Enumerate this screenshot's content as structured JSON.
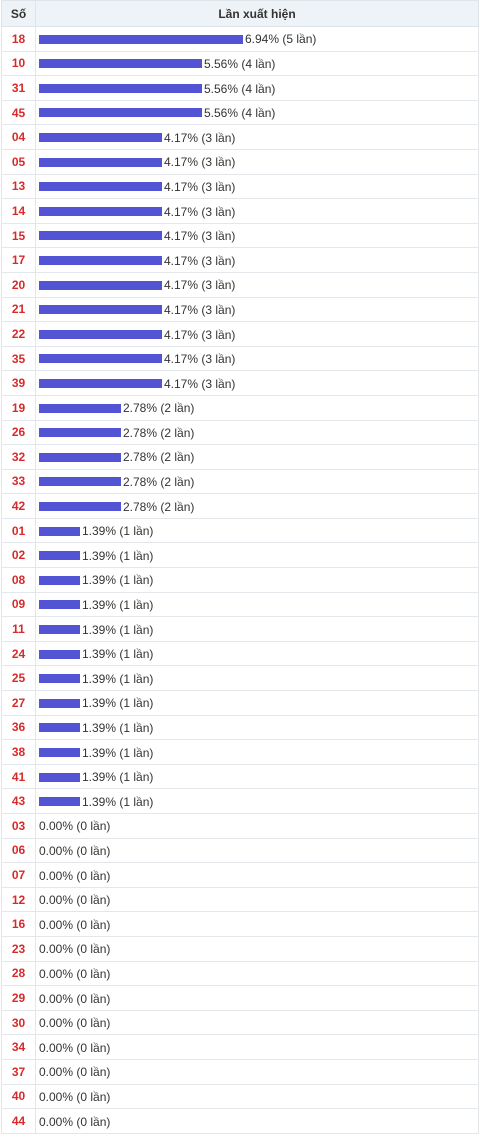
{
  "header": {
    "col_number": "Số",
    "col_freq": "Lần xuất hiện"
  },
  "colors": {
    "bar": "#5254d4",
    "number": "#d82a2a",
    "header_bg": "#eef3f8"
  },
  "chart_data": {
    "type": "bar",
    "orientation": "horizontal",
    "value_unit": "percent",
    "rows": [
      {
        "num": "18",
        "value": 6.94,
        "label": "6.94% (5 lần)"
      },
      {
        "num": "10",
        "value": 5.56,
        "label": "5.56% (4 lần)"
      },
      {
        "num": "31",
        "value": 5.56,
        "label": "5.56% (4 lần)"
      },
      {
        "num": "45",
        "value": 5.56,
        "label": "5.56% (4 lần)"
      },
      {
        "num": "04",
        "value": 4.17,
        "label": "4.17% (3 lần)"
      },
      {
        "num": "05",
        "value": 4.17,
        "label": "4.17% (3 lần)"
      },
      {
        "num": "13",
        "value": 4.17,
        "label": "4.17% (3 lần)"
      },
      {
        "num": "14",
        "value": 4.17,
        "label": "4.17% (3 lần)"
      },
      {
        "num": "15",
        "value": 4.17,
        "label": "4.17% (3 lần)"
      },
      {
        "num": "17",
        "value": 4.17,
        "label": "4.17% (3 lần)"
      },
      {
        "num": "20",
        "value": 4.17,
        "label": "4.17% (3 lần)"
      },
      {
        "num": "21",
        "value": 4.17,
        "label": "4.17% (3 lần)"
      },
      {
        "num": "22",
        "value": 4.17,
        "label": "4.17% (3 lần)"
      },
      {
        "num": "35",
        "value": 4.17,
        "label": "4.17% (3 lần)"
      },
      {
        "num": "39",
        "value": 4.17,
        "label": "4.17% (3 lần)"
      },
      {
        "num": "19",
        "value": 2.78,
        "label": "2.78% (2 lần)"
      },
      {
        "num": "26",
        "value": 2.78,
        "label": "2.78% (2 lần)"
      },
      {
        "num": "32",
        "value": 2.78,
        "label": "2.78% (2 lần)"
      },
      {
        "num": "33",
        "value": 2.78,
        "label": "2.78% (2 lần)"
      },
      {
        "num": "42",
        "value": 2.78,
        "label": "2.78% (2 lần)"
      },
      {
        "num": "01",
        "value": 1.39,
        "label": "1.39% (1 lần)"
      },
      {
        "num": "02",
        "value": 1.39,
        "label": "1.39% (1 lần)"
      },
      {
        "num": "08",
        "value": 1.39,
        "label": "1.39% (1 lần)"
      },
      {
        "num": "09",
        "value": 1.39,
        "label": "1.39% (1 lần)"
      },
      {
        "num": "11",
        "value": 1.39,
        "label": "1.39% (1 lần)"
      },
      {
        "num": "24",
        "value": 1.39,
        "label": "1.39% (1 lần)"
      },
      {
        "num": "25",
        "value": 1.39,
        "label": "1.39% (1 lần)"
      },
      {
        "num": "27",
        "value": 1.39,
        "label": "1.39% (1 lần)"
      },
      {
        "num": "36",
        "value": 1.39,
        "label": "1.39% (1 lần)"
      },
      {
        "num": "38",
        "value": 1.39,
        "label": "1.39% (1 lần)"
      },
      {
        "num": "41",
        "value": 1.39,
        "label": "1.39% (1 lần)"
      },
      {
        "num": "43",
        "value": 1.39,
        "label": "1.39% (1 lần)"
      },
      {
        "num": "03",
        "value": 0,
        "label": "0.00% (0 lần)"
      },
      {
        "num": "06",
        "value": 0,
        "label": "0.00% (0 lần)"
      },
      {
        "num": "07",
        "value": 0,
        "label": "0.00% (0 lần)"
      },
      {
        "num": "12",
        "value": 0,
        "label": "0.00% (0 lần)"
      },
      {
        "num": "16",
        "value": 0,
        "label": "0.00% (0 lần)"
      },
      {
        "num": "23",
        "value": 0,
        "label": "0.00% (0 lần)"
      },
      {
        "num": "28",
        "value": 0,
        "label": "0.00% (0 lần)"
      },
      {
        "num": "29",
        "value": 0,
        "label": "0.00% (0 lần)"
      },
      {
        "num": "30",
        "value": 0,
        "label": "0.00% (0 lần)"
      },
      {
        "num": "34",
        "value": 0,
        "label": "0.00% (0 lần)"
      },
      {
        "num": "37",
        "value": 0,
        "label": "0.00% (0 lần)"
      },
      {
        "num": "40",
        "value": 0,
        "label": "0.00% (0 lần)"
      },
      {
        "num": "44",
        "value": 0,
        "label": "0.00% (0 lần)"
      }
    ]
  }
}
